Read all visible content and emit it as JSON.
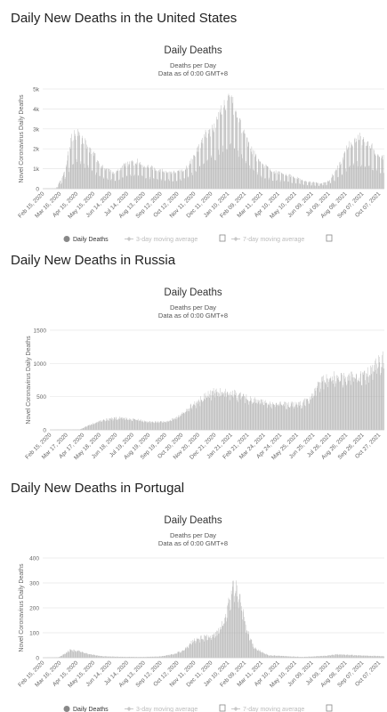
{
  "headings": [
    "Daily New Deaths in the United States",
    "Daily New Deaths in Russia",
    "Daily New Deaths in Portugal"
  ],
  "colors": {
    "bar": "#a8a8a8",
    "grid": "#e6e6e6",
    "legend_active": "#888888",
    "legend_inactive": "#c8c8c8"
  },
  "chart_data": [
    {
      "type": "bar",
      "title": "Daily Deaths",
      "subtitle": [
        "Deaths per Day",
        "Data as of 0:00 GMT+8"
      ],
      "ylabel": "Novel Coronavirus Daily Deaths",
      "ylim": [
        0,
        5000
      ],
      "yticks": [
        "0",
        "1k",
        "2k",
        "3k",
        "4k",
        "5k"
      ],
      "x_range": [
        "2020-02-15",
        "2021-10-28"
      ],
      "x_tick_labels": [
        "Feb 15, 2020",
        "Mar 16, 2020",
        "Apr 15, 2020",
        "May 15, 2020",
        "Jun 14, 2020",
        "Jul 14, 2020",
        "Aug 13, 2020",
        "Sep 12, 2020",
        "Oct 12, 2020",
        "Nov 11, 2020",
        "Dec 11, 2020",
        "Jan 10, 2021",
        "Feb 09, 2021",
        "Mar 11, 2021",
        "Apr 10, 2021",
        "May 10, 2021",
        "Jun 09, 2021",
        "Jul 09, 2021",
        "Aug 08, 2021",
        "Sep 07, 2021",
        "Oct 07, 2021"
      ],
      "legend": [
        "Daily Deaths",
        "3-day moving average",
        "7-day moving average"
      ],
      "legend_position": "bottom",
      "grid": true,
      "weekly_dip": 0.5,
      "envelope_x": [
        "2020-02-15",
        "2020-03-10",
        "2020-03-25",
        "2020-04-08",
        "2020-04-20",
        "2020-05-10",
        "2020-06-01",
        "2020-06-25",
        "2020-07-15",
        "2020-08-05",
        "2020-08-25",
        "2020-09-20",
        "2020-10-15",
        "2020-11-01",
        "2020-11-20",
        "2020-12-10",
        "2020-12-25",
        "2021-01-12",
        "2021-01-25",
        "2021-02-08",
        "2021-02-25",
        "2021-03-15",
        "2021-04-10",
        "2021-05-10",
        "2021-06-10",
        "2021-07-05",
        "2021-07-20",
        "2021-08-10",
        "2021-08-25",
        "2021-09-10",
        "2021-09-25",
        "2021-10-10",
        "2021-10-28"
      ],
      "envelope_y": [
        0,
        20,
        800,
        2600,
        2700,
        2000,
        1100,
        800,
        1250,
        1350,
        1100,
        900,
        800,
        1000,
        1800,
        2800,
        3200,
        4350,
        4200,
        3300,
        2200,
        1300,
        850,
        650,
        350,
        280,
        400,
        1300,
        2200,
        2550,
        2400,
        1900,
        1600
      ]
    },
    {
      "type": "bar",
      "title": "Daily Deaths",
      "subtitle": [
        "Deaths per Day",
        "Data as of 0:00 GMT+8"
      ],
      "ylabel": "Novel Coronavirus Daily Deaths",
      "ylim": [
        0,
        1500
      ],
      "yticks": [
        "0",
        "500",
        "1000",
        "1500"
      ],
      "x_range": [
        "2020-02-15",
        "2021-10-28"
      ],
      "x_tick_labels": [
        "Feb 15, 2020",
        "Mar 17, 2020",
        "Apr 17, 2020",
        "May 18, 2020",
        "Jun 18, 2020",
        "Jul 19, 2020",
        "Aug 19, 2020",
        "Sep 19, 2020",
        "Oct 20, 2020",
        "Nov 20, 2020",
        "Dec 21, 2020",
        "Jan 21, 2021",
        "Feb 21, 2021",
        "Mar 24, 2021",
        "Apr 24, 2021",
        "May 25, 2021",
        "Jun 25, 2021",
        "Jul 26, 2021",
        "Aug 26, 2021",
        "Sep 26, 2021",
        "Oct 27, 2021"
      ],
      "legend": [],
      "grid": true,
      "weekly_dip": 0.1,
      "envelope_x": [
        "2020-02-15",
        "2020-04-10",
        "2020-04-25",
        "2020-05-15",
        "2020-06-05",
        "2020-06-25",
        "2020-07-20",
        "2020-08-20",
        "2020-09-20",
        "2020-10-10",
        "2020-10-25",
        "2020-11-15",
        "2020-12-05",
        "2020-12-20",
        "2021-01-05",
        "2021-01-20",
        "2021-02-10",
        "2021-03-01",
        "2021-03-24",
        "2021-04-20",
        "2021-05-20",
        "2021-06-10",
        "2021-06-25",
        "2021-07-10",
        "2021-07-25",
        "2021-08-26",
        "2021-09-15",
        "2021-09-26",
        "2021-10-10",
        "2021-10-28"
      ],
      "envelope_y": [
        0,
        5,
        60,
        130,
        170,
        180,
        160,
        120,
        120,
        200,
        300,
        420,
        530,
        580,
        560,
        550,
        500,
        450,
        400,
        380,
        380,
        450,
        650,
        760,
        790,
        790,
        800,
        850,
        960,
        1080
      ]
    },
    {
      "type": "bar",
      "title": "Daily Deaths",
      "subtitle": [
        "Deaths per Day",
        "Data as of 0:00 GMT+8"
      ],
      "ylabel": "Novel Coronavirus Daily Deaths",
      "ylim": [
        0,
        400
      ],
      "yticks": [
        "0",
        "100",
        "200",
        "300",
        "400"
      ],
      "x_range": [
        "2020-02-15",
        "2021-10-28"
      ],
      "x_tick_labels": [
        "Feb 15, 2020",
        "Mar 16, 2020",
        "Apr 15, 2020",
        "May 15, 2020",
        "Jun 14, 2020",
        "Jul 14, 2020",
        "Aug 13, 2020",
        "Sep 12, 2020",
        "Oct 12, 2020",
        "Nov 11, 2020",
        "Dec 11, 2020",
        "Jan 10, 2021",
        "Feb 09, 2021",
        "Mar 11, 2021",
        "Apr 10, 2021",
        "May 10, 2021",
        "Jun 09, 2021",
        "Jul 09, 2021",
        "Aug 08, 2021",
        "Sep 07, 2021",
        "Oct 07, 2021"
      ],
      "legend": [
        "Daily Deaths",
        "3-day moving average",
        "7-day moving average"
      ],
      "legend_position": "bottom",
      "grid": true,
      "weekly_dip": 0.15,
      "envelope_x": [
        "2020-02-15",
        "2020-03-15",
        "2020-03-28",
        "2020-04-05",
        "2020-04-18",
        "2020-05-10",
        "2020-06-01",
        "2020-07-01",
        "2020-08-10",
        "2020-09-15",
        "2020-10-10",
        "2020-10-28",
        "2020-11-15",
        "2020-12-05",
        "2020-12-25",
        "2021-01-10",
        "2021-01-20",
        "2021-01-28",
        "2021-02-08",
        "2021-02-20",
        "2021-03-05",
        "2021-04-01",
        "2021-06-01",
        "2021-07-15",
        "2021-08-05",
        "2021-09-05",
        "2021-10-28"
      ],
      "envelope_y": [
        0,
        2,
        20,
        32,
        28,
        15,
        6,
        4,
        3,
        5,
        15,
        30,
        70,
        85,
        90,
        150,
        240,
        300,
        240,
        120,
        40,
        10,
        3,
        8,
        14,
        10,
        6
      ]
    }
  ]
}
